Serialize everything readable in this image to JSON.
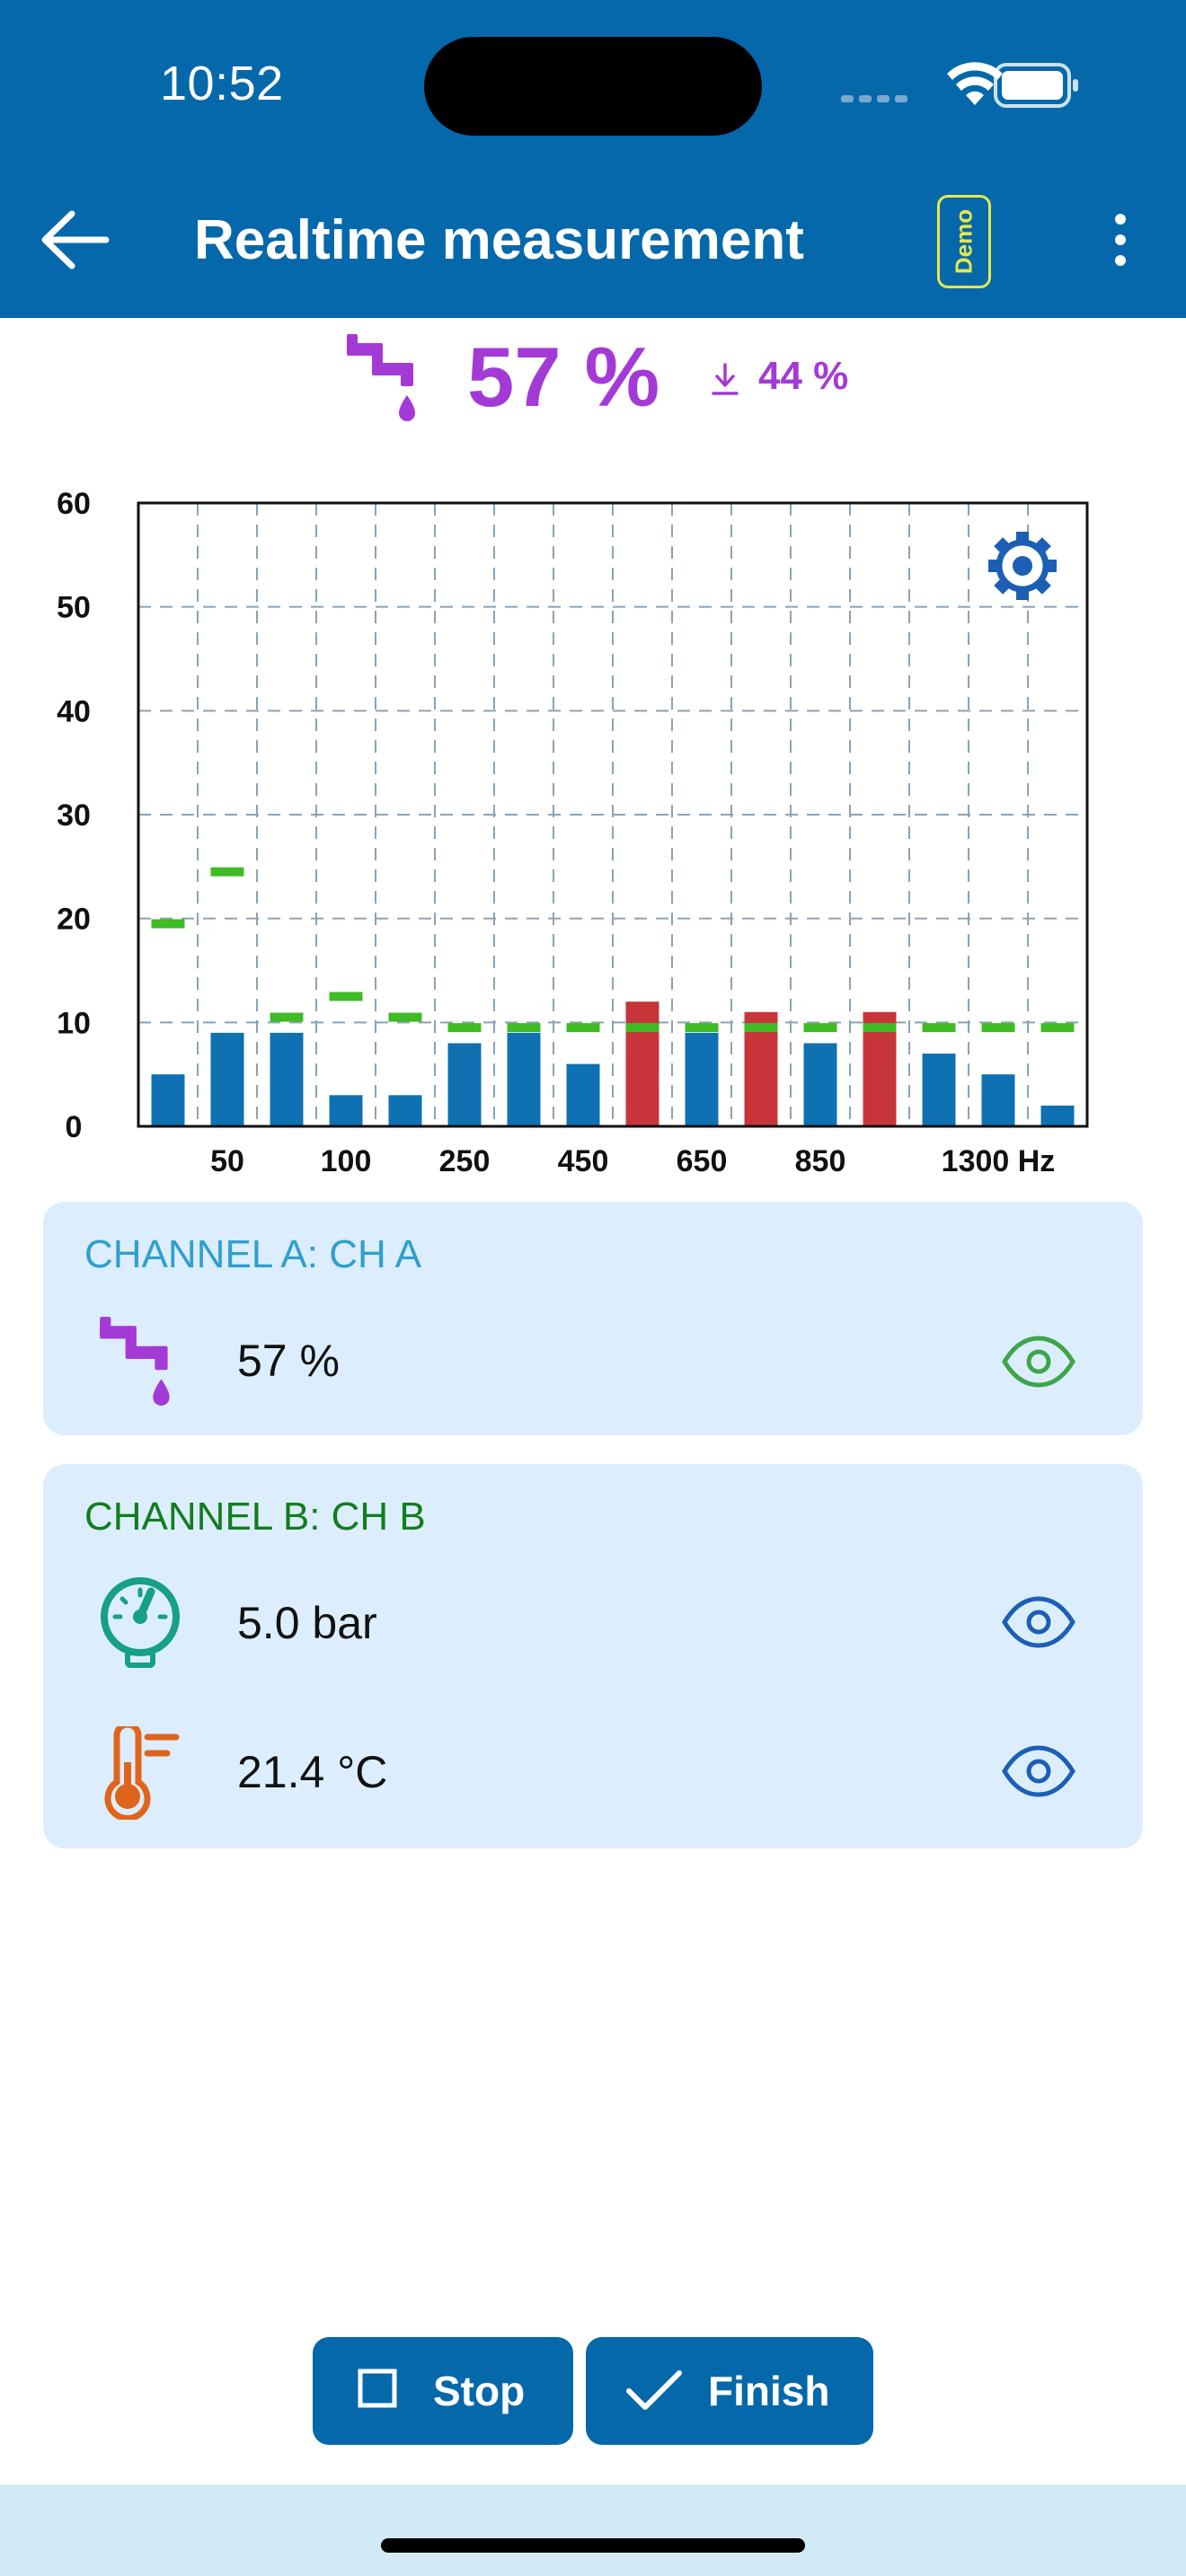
{
  "status_bar": {
    "time": "10:52"
  },
  "app_bar": {
    "title": "Realtime measurement",
    "demo_badge": "Demo"
  },
  "summary": {
    "value": "57 %",
    "min_value": "44 %"
  },
  "chart_data": {
    "type": "bar",
    "ylim": [
      0,
      60
    ],
    "yticks": [
      "0",
      "10",
      "20",
      "30",
      "40",
      "50",
      "60"
    ],
    "xtick_labels": [
      "50",
      "100",
      "250",
      "450",
      "650",
      "850",
      "1300 Hz"
    ],
    "xtick_positions": [
      1.5,
      3.5,
      5.5,
      7.5,
      9.5,
      11.5,
      14.5
    ],
    "bins": 16,
    "grid": true,
    "values": [
      5,
      9,
      9,
      3,
      3,
      8,
      9,
      6,
      12,
      9,
      11,
      8,
      11,
      7,
      5,
      2
    ],
    "thresholds": [
      19.5,
      24.5,
      10.5,
      12.5,
      10.5,
      9.5,
      9.5,
      9.5,
      9.5,
      9.5,
      9.5,
      9.5,
      9.5,
      9.5,
      9.5,
      9.5
    ],
    "colors": {
      "normal": "#0f70b2",
      "exceeded": "#c7353b",
      "threshold": "#3fbb23",
      "grid": "#8aa3b5"
    }
  },
  "channel_a": {
    "title": "CHANNEL A: CH A",
    "rows": [
      {
        "icon": "leak-faucet-icon",
        "value": "57 %"
      }
    ]
  },
  "channel_b": {
    "title": "CHANNEL B: CH B",
    "rows": [
      {
        "icon": "pressure-gauge-icon",
        "value": "5.0 bar"
      },
      {
        "icon": "thermometer-icon",
        "value": "21.4 °C"
      }
    ]
  },
  "actions": {
    "stop": "Stop",
    "finish": "Finish"
  }
}
